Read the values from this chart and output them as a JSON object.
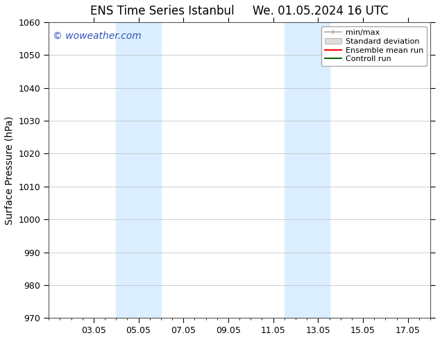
{
  "title_left": "ENS Time Series Istanbul",
  "title_right": "We. 01.05.2024 16 UTC",
  "ylabel": "Surface Pressure (hPa)",
  "ylim": [
    970,
    1060
  ],
  "yticks": [
    970,
    980,
    990,
    1000,
    1010,
    1020,
    1030,
    1040,
    1050,
    1060
  ],
  "xlim": [
    0,
    17
  ],
  "xtick_labels": [
    "03.05",
    "05.05",
    "07.05",
    "09.05",
    "11.05",
    "13.05",
    "15.05",
    "17.05"
  ],
  "xtick_positions": [
    2,
    4,
    6,
    8,
    10,
    12,
    14,
    16
  ],
  "shade_bands": [
    {
      "x_start": 3.0,
      "x_end": 5.0
    },
    {
      "x_start": 10.5,
      "x_end": 12.5
    }
  ],
  "shade_color": "#daeeff",
  "watermark_text": "© woweather.com",
  "watermark_color": "#3355bb",
  "legend_labels": [
    "min/max",
    "Standard deviation",
    "Ensemble mean run",
    "Controll run"
  ],
  "legend_line_colors": [
    "#aaaaaa",
    "#cccccc",
    "#ff0000",
    "#006600"
  ],
  "bg_color": "#ffffff",
  "grid_color": "#bbbbbb",
  "spine_color": "#555555",
  "title_fontsize": 12,
  "axis_label_fontsize": 10,
  "tick_fontsize": 9,
  "watermark_fontsize": 10,
  "legend_fontsize": 8
}
